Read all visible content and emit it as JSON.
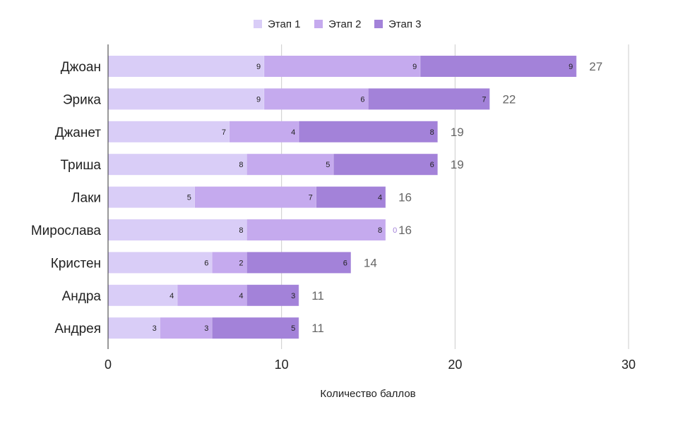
{
  "chart_data": {
    "type": "bar",
    "orientation": "horizontal",
    "stacked": true,
    "title": "",
    "xlabel": "Количество баллов",
    "ylabel": "",
    "xlim": [
      0,
      30
    ],
    "x_ticks": [
      "0",
      "10",
      "20",
      "30"
    ],
    "grid": true,
    "legend_position": "top-center",
    "categories": [
      "Джоан",
      "Эрика",
      "Джанет",
      "Триша",
      "Лаки",
      "Мирослава",
      "Кристен",
      "Андра",
      "Андрея"
    ],
    "series": [
      {
        "name": "Этап 1",
        "color": "#d9cdf7",
        "values": [
          9,
          9,
          7,
          8,
          5,
          8,
          6,
          4,
          3
        ]
      },
      {
        "name": "Этап 2",
        "color": "#c5aaee",
        "values": [
          9,
          6,
          4,
          5,
          7,
          8,
          2,
          4,
          3
        ]
      },
      {
        "name": "Этап 3",
        "color": "#a382d9",
        "values": [
          9,
          7,
          8,
          6,
          4,
          0,
          6,
          3,
          5
        ]
      }
    ],
    "totals": [
      27,
      22,
      19,
      19,
      16,
      16,
      14,
      11,
      11
    ]
  }
}
